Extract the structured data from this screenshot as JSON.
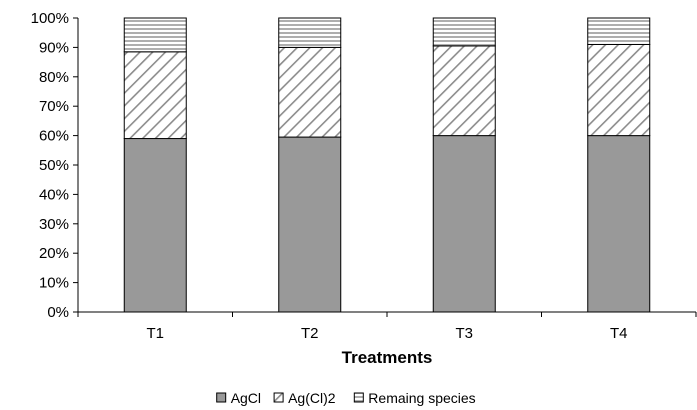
{
  "chart_data": {
    "type": "bar",
    "stacked": true,
    "percent": true,
    "categories": [
      "T1",
      "T2",
      "T3",
      "T4"
    ],
    "series": [
      {
        "name": "AgCl",
        "values": [
          59,
          59.5,
          60,
          60
        ],
        "color": "#999999",
        "pattern": "solid"
      },
      {
        "name": "Ag(Cl)2",
        "values": [
          29.5,
          30.5,
          30.5,
          31
        ],
        "color": "#ffffff",
        "pattern": "diagonal"
      },
      {
        "name": "Remaing species",
        "values": [
          11.5,
          10,
          9.5,
          9
        ],
        "color": "#ffffff",
        "pattern": "horizontal"
      }
    ],
    "xlabel": "Treatments",
    "ylabel": "",
    "ylim": [
      0,
      100
    ],
    "yticks": [
      "0%",
      "10%",
      "20%",
      "30%",
      "40%",
      "50%",
      "60%",
      "70%",
      "80%",
      "90%",
      "100%"
    ],
    "grid": false,
    "legend": "bottom"
  }
}
